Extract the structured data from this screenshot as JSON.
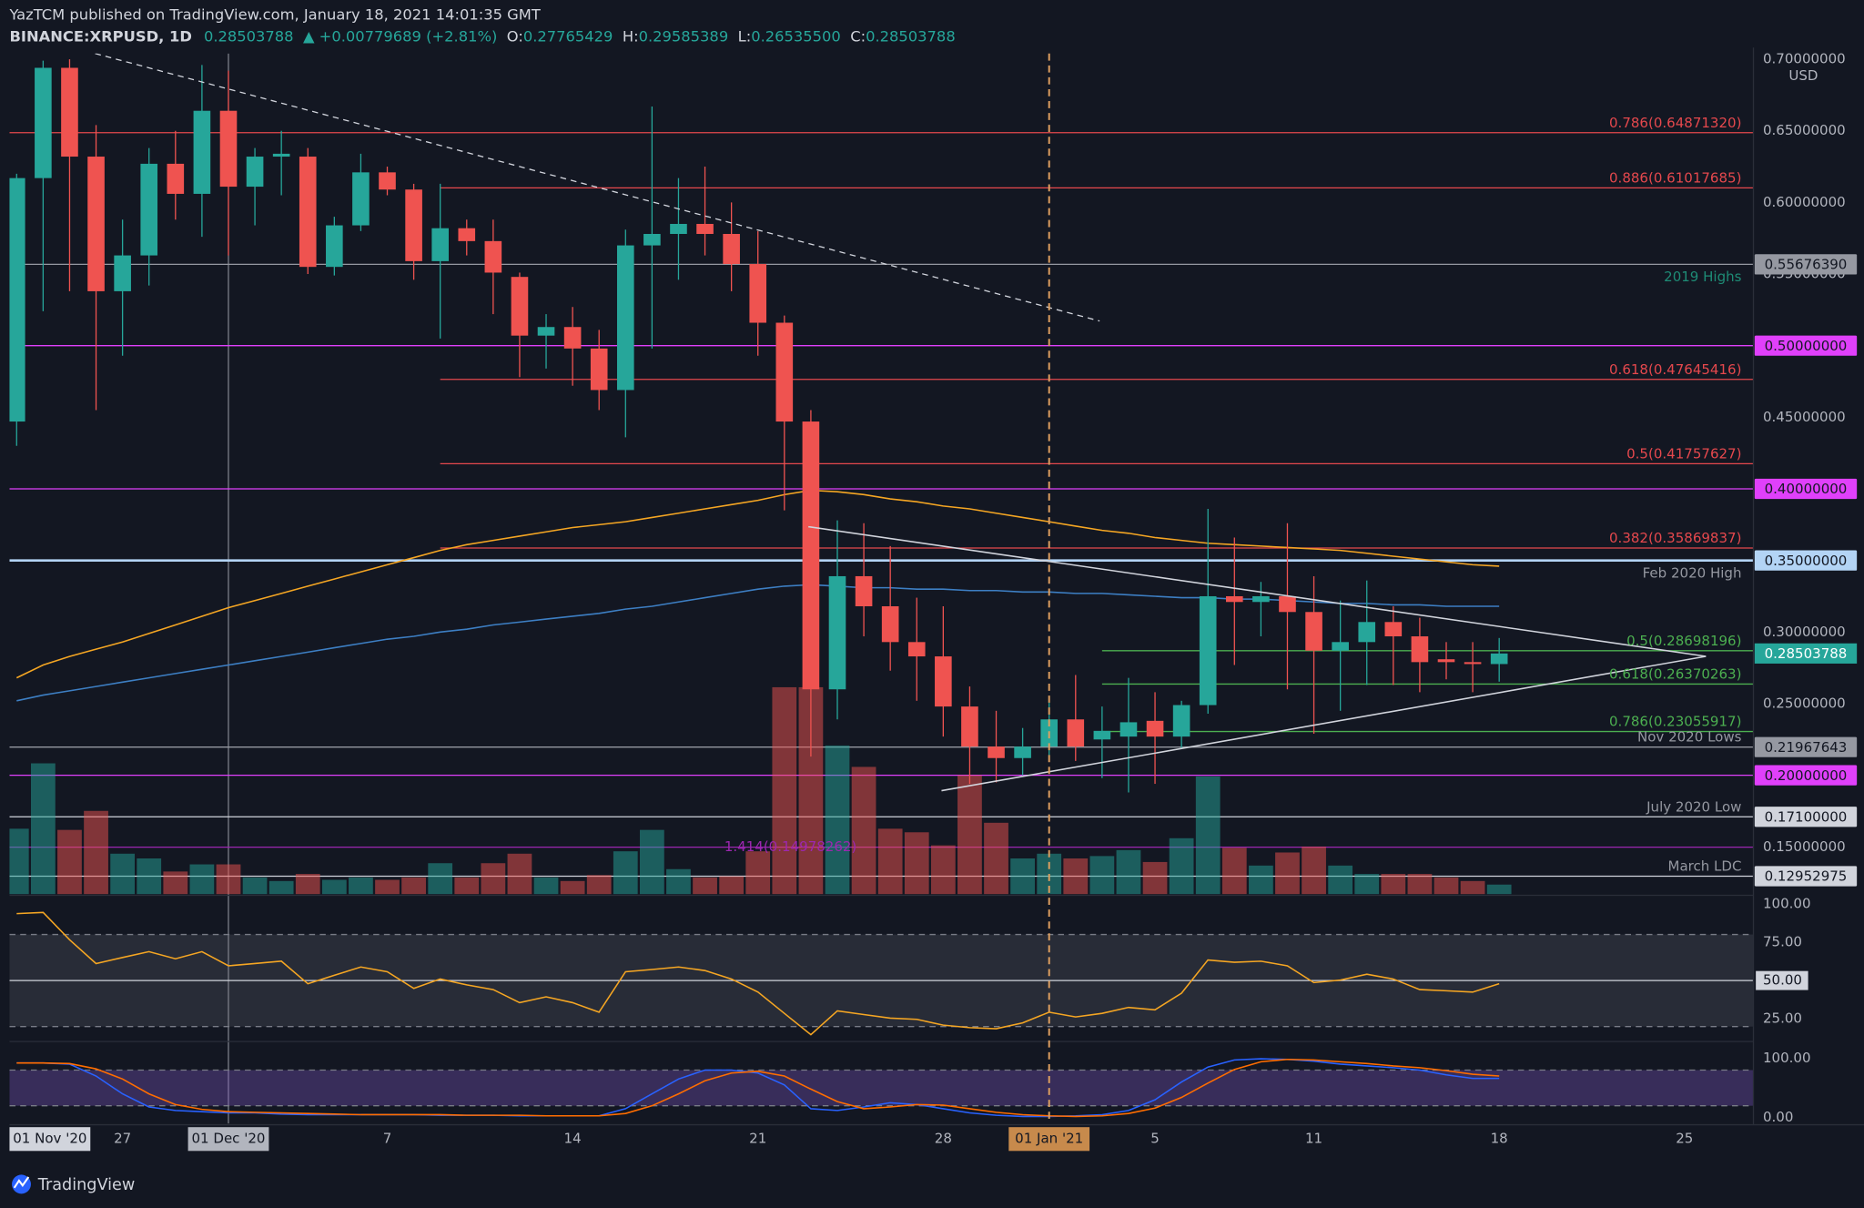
{
  "header": {
    "publisher": "YazTCM published on TradingView.com, January 18, 2021 14:01:35 GMT",
    "symbol": "BINANCE:XRPUSD, 1D",
    "price": "0.28503788",
    "change": "▲ +0.00779689 (+2.81%)",
    "ohlc": [
      {
        "key": "O:",
        "value": "0.27765429"
      },
      {
        "key": "H:",
        "value": "0.29585389"
      },
      {
        "key": "L:",
        "value": "0.26535500"
      },
      {
        "key": "C:",
        "value": "0.28503788"
      }
    ]
  },
  "chart_data": [
    {
      "type": "candlestick",
      "currency": "USD",
      "categories": [
        null,
        null,
        null,
        null,
        "27",
        null,
        null,
        null,
        "01 Dec '20",
        null,
        null,
        null,
        null,
        null,
        "7",
        null,
        null,
        null,
        null,
        null,
        null,
        "14",
        null,
        null,
        null,
        null,
        null,
        null,
        "21",
        null,
        null,
        null,
        null,
        null,
        null,
        "28",
        null,
        null,
        null,
        "01 Jan '21",
        null,
        null,
        null,
        "5",
        null,
        null,
        null,
        null,
        null,
        "11",
        null,
        null,
        null,
        null,
        null,
        null,
        "18"
      ],
      "x_extra_labels": [
        "01 Nov '20",
        "25"
      ],
      "crosshair_index": 8,
      "marker_index": 39,
      "open": [
        0.447,
        0.617,
        0.694,
        0.632,
        0.538,
        0.563,
        0.627,
        0.606,
        0.664,
        0.611,
        0.632,
        0.632,
        0.555,
        0.584,
        0.621,
        0.609,
        0.559,
        0.582,
        0.573,
        0.548,
        0.507,
        0.513,
        0.498,
        0.469,
        0.57,
        0.578,
        0.585,
        0.578,
        0.557,
        0.516,
        0.447,
        0.26,
        0.339,
        0.318,
        0.293,
        0.283,
        0.248,
        0.22,
        0.212,
        0.22,
        0.239,
        0.225,
        0.227,
        0.238,
        0.227,
        0.249,
        0.325,
        0.321,
        0.325,
        0.314,
        0.287,
        0.293,
        0.307,
        0.297,
        0.281,
        0.279,
        0.27765429
      ],
      "high": [
        0.62,
        0.699,
        0.7,
        0.654,
        0.588,
        0.638,
        0.65,
        0.696,
        0.692,
        0.638,
        0.65,
        0.638,
        0.59,
        0.634,
        0.625,
        0.613,
        0.613,
        0.588,
        0.588,
        0.551,
        0.522,
        0.527,
        0.511,
        0.581,
        0.667,
        0.617,
        0.625,
        0.6,
        0.58,
        0.521,
        0.455,
        0.378,
        0.376,
        0.36,
        0.324,
        0.318,
        0.262,
        0.245,
        0.233,
        0.253,
        0.27,
        0.248,
        0.268,
        0.258,
        0.252,
        0.386,
        0.366,
        0.335,
        0.376,
        0.339,
        0.322,
        0.336,
        0.318,
        0.31,
        0.293,
        0.293,
        0.29585389
      ],
      "low": [
        0.43,
        0.524,
        0.538,
        0.455,
        0.493,
        0.542,
        0.588,
        0.576,
        0.563,
        0.584,
        0.605,
        0.55,
        0.549,
        0.58,
        0.605,
        0.546,
        0.505,
        0.563,
        0.522,
        0.478,
        0.484,
        0.472,
        0.455,
        0.436,
        0.498,
        0.546,
        0.563,
        0.538,
        0.493,
        0.385,
        0.213,
        0.239,
        0.297,
        0.273,
        0.252,
        0.227,
        0.194,
        0.195,
        0.2,
        0.21,
        0.21,
        0.198,
        0.188,
        0.194,
        0.219,
        0.243,
        0.277,
        0.297,
        0.26,
        0.229,
        0.245,
        0.263,
        0.263,
        0.258,
        0.267,
        0.258,
        0.265355
      ],
      "close": [
        0.617,
        0.694,
        0.632,
        0.538,
        0.563,
        0.627,
        0.606,
        0.664,
        0.611,
        0.632,
        0.634,
        0.555,
        0.584,
        0.621,
        0.609,
        0.559,
        0.582,
        0.573,
        0.551,
        0.507,
        0.513,
        0.498,
        0.469,
        0.57,
        0.578,
        0.585,
        0.578,
        0.557,
        0.516,
        0.447,
        0.26,
        0.339,
        0.318,
        0.293,
        0.283,
        0.248,
        0.22,
        0.212,
        0.22,
        0.239,
        0.22,
        0.231,
        0.237,
        0.227,
        0.249,
        0.325,
        0.321,
        0.325,
        0.314,
        0.287,
        0.293,
        0.307,
        0.297,
        0.279,
        0.279,
        0.27765429,
        0.28503788
      ],
      "volume": [
        55,
        110,
        54,
        70,
        34,
        30,
        19,
        25,
        25,
        14,
        11,
        17,
        12,
        14,
        12,
        14,
        26,
        14,
        26,
        34,
        14,
        11,
        16,
        36,
        54,
        21,
        14,
        15,
        36,
        174,
        174,
        125,
        107,
        55,
        52,
        41,
        100,
        60,
        30,
        34,
        30,
        32,
        37,
        27,
        47,
        99,
        39,
        24,
        35,
        40,
        24,
        17,
        17,
        17,
        14,
        11,
        8
      ],
      "volume_lim": [
        0,
        707
      ],
      "up_color": "#26a69a",
      "down_color": "#ef5350",
      "moving_averages": [
        {
          "color": "#f5a623",
          "values": [
            0.268,
            0.277,
            0.283,
            0.288,
            0.293,
            0.299,
            0.305,
            0.311,
            0.317,
            0.322,
            0.327,
            0.332,
            0.337,
            0.342,
            0.347,
            0.352,
            0.357,
            0.361,
            0.364,
            0.367,
            0.37,
            0.373,
            0.375,
            0.377,
            0.38,
            0.383,
            0.386,
            0.389,
            0.392,
            0.396,
            0.399,
            0.398,
            0.396,
            0.393,
            0.391,
            0.388,
            0.386,
            0.383,
            0.38,
            0.377,
            0.374,
            0.371,
            0.369,
            0.366,
            0.364,
            0.362,
            0.361,
            0.36,
            0.359,
            0.358,
            0.357,
            0.355,
            0.353,
            0.351,
            0.349,
            0.347,
            0.346
          ]
        },
        {
          "color": "#3d7fc4",
          "values": [
            0.252,
            0.256,
            0.259,
            0.262,
            0.265,
            0.268,
            0.271,
            0.274,
            0.277,
            0.28,
            0.283,
            0.286,
            0.289,
            0.292,
            0.295,
            0.297,
            0.3,
            0.302,
            0.305,
            0.307,
            0.309,
            0.311,
            0.313,
            0.316,
            0.318,
            0.321,
            0.324,
            0.327,
            0.33,
            0.332,
            0.333,
            0.332,
            0.331,
            0.331,
            0.33,
            0.33,
            0.329,
            0.329,
            0.328,
            0.328,
            0.327,
            0.327,
            0.326,
            0.325,
            0.324,
            0.324,
            0.323,
            0.323,
            0.322,
            0.321,
            0.32,
            0.32,
            0.319,
            0.319,
            0.318,
            0.318,
            0.318
          ]
        }
      ],
      "ylim": [
        0.117,
        0.704
      ],
      "yticks": [
        {
          "value": 0.7,
          "label": "0.70000000"
        },
        {
          "value": 0.65,
          "label": "0.65000000"
        },
        {
          "value": 0.6,
          "label": "0.60000000"
        },
        {
          "value": 0.55,
          "label": "0.55000000"
        },
        {
          "value": 0.45,
          "label": "0.45000000"
        },
        {
          "value": 0.3,
          "label": "0.30000000"
        },
        {
          "value": 0.25,
          "label": "0.25000000"
        },
        {
          "value": 0.15,
          "label": "0.15000000"
        }
      ],
      "levels": [
        {
          "value": 0.6487132,
          "label": "0.786(0.64871320)",
          "color": "#e5484d",
          "span": "full"
        },
        {
          "value": 0.61017685,
          "label": "0.886(0.61017685)",
          "color": "#e5484d",
          "span": "dec"
        },
        {
          "value": 0.5567639,
          "tag": "0.55676390",
          "note": "2019 Highs",
          "note_color": "#1e8c76",
          "note_below": true,
          "color": "#9598a1",
          "span": "full"
        },
        {
          "value": 0.5,
          "tag": "0.50000000",
          "color": "#e040fb",
          "span": "full"
        },
        {
          "value": 0.47645416,
          "label": "0.618(0.47645416)",
          "color": "#e5484d",
          "span": "dec"
        },
        {
          "value": 0.41757627,
          "label": "0.5(0.41757627)",
          "color": "#e5484d",
          "span": "dec"
        },
        {
          "value": 0.4,
          "tag": "0.40000000",
          "color": "#e040fb",
          "span": "full"
        },
        {
          "value": 0.35869837,
          "label": "0.382(0.35869837)",
          "color": "#e5484d",
          "span": "dec"
        },
        {
          "value": 0.35,
          "tag": "0.35000000",
          "note": "Feb 2020 High",
          "note_below": true,
          "color": "#b3d4f5",
          "thick": true,
          "span": "full"
        },
        {
          "value": 0.28698196,
          "label": "0.5(0.28698196)",
          "color": "#4caf50",
          "span": "jan"
        },
        {
          "value": 0.26370263,
          "label": "0.618(0.26370263)",
          "color": "#4caf50",
          "span": "jan"
        },
        {
          "value": 0.23055917,
          "label": "0.786(0.23055917)",
          "color": "#4caf50",
          "span": "jan"
        },
        {
          "value": 0.21967643,
          "tag": "0.21967643",
          "note": "Nov 2020 Lows",
          "color": "#9598a1",
          "span": "full"
        },
        {
          "value": 0.2,
          "tag": "0.20000000",
          "color": "#e040fb",
          "span": "full"
        },
        {
          "value": 0.171,
          "tag": "0.17100000",
          "note": "July 2020 Low",
          "color": "#d1d4dc",
          "span": "full"
        },
        {
          "value": 0.14978262,
          "label": "1.414(0.14978262)",
          "color": "#9c27b0",
          "span": "full",
          "label_middle": true
        },
        {
          "value": 0.12952975,
          "tag": "0.12952975",
          "note": "March LDC",
          "color": "#d1d4dc",
          "span": "full"
        }
      ]
    },
    {
      "type": "line",
      "ylim": [
        11,
        104
      ],
      "yticks": [
        {
          "value": 100,
          "label": "100.00"
        },
        {
          "value": 75,
          "label": "75.00"
        },
        {
          "value": 50,
          "label": "50.00"
        },
        {
          "value": 25,
          "label": "25.00"
        }
      ],
      "bands": [
        20,
        80
      ],
      "band_color": "rgba(120,123,134,0.22)",
      "midline": 50,
      "series": [
        {
          "color": "#f5a623",
          "values": [
            93.6,
            94.4,
            76.6,
            61.1,
            65.0,
            68.8,
            64.2,
            68.8,
            59.6,
            61.1,
            62.6,
            47.9,
            53.4,
            58.8,
            55.7,
            44.9,
            51.0,
            47.2,
            44.1,
            35.6,
            39.4,
            35.6,
            29.4,
            55.7,
            57.2,
            58.8,
            56.5,
            51.0,
            42.5,
            28.6,
            14.7,
            30.2,
            27.8,
            25.5,
            24.7,
            20.9,
            19.3,
            18.6,
            22.4,
            29.4,
            26.3,
            28.6,
            32.5,
            30.9,
            41.8,
            63.4,
            61.9,
            62.6,
            59.6,
            48.7,
            50.3,
            54.1,
            51.0,
            44.1,
            43.3,
            42.5,
            47.9
          ]
        }
      ]
    },
    {
      "type": "line",
      "ylim": [
        -10,
        124
      ],
      "yticks": [
        {
          "value": 100,
          "label": "100.00"
        },
        {
          "value": 0,
          "label": "0.00"
        }
      ],
      "bands": [
        20,
        80
      ],
      "band_color": "rgba(126,87,194,0.35)",
      "series": [
        {
          "color": "#2962ff",
          "values": [
            92,
            92,
            90,
            70,
            40,
            18,
            12,
            10,
            8,
            8,
            6,
            5,
            5,
            5,
            5,
            5,
            4,
            4,
            4,
            3,
            3,
            3,
            3,
            15,
            40,
            65,
            80,
            80,
            75,
            55,
            15,
            12,
            18,
            25,
            22,
            15,
            8,
            4,
            2,
            2,
            3,
            5,
            12,
            30,
            60,
            85,
            97,
            99,
            98,
            95,
            90,
            87,
            84,
            80,
            72,
            66,
            66
          ]
        },
        {
          "color": "#ff6d00",
          "values": [
            92,
            92,
            91,
            82,
            65,
            40,
            22,
            14,
            10,
            9,
            8,
            7,
            6,
            5,
            5,
            5,
            5,
            4,
            4,
            4,
            3,
            3,
            3,
            7,
            20,
            40,
            62,
            75,
            78,
            70,
            48,
            27,
            15,
            18,
            22,
            21,
            15,
            9,
            5,
            3,
            2,
            3,
            7,
            16,
            34,
            58,
            81,
            94,
            98,
            97,
            94,
            91,
            87,
            84,
            79,
            73,
            70
          ]
        }
      ]
    }
  ],
  "footer": {
    "brand": "TradingView"
  }
}
